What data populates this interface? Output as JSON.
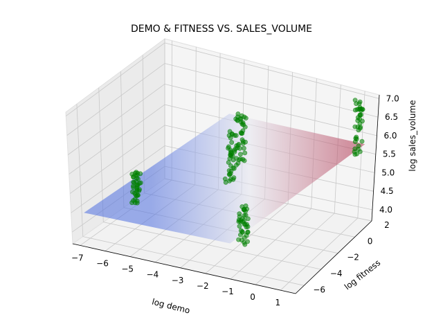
{
  "chart_data": {
    "type": "scatter3d",
    "title": "DEMO & FITNESS VS. SALES_VOLUME",
    "xlabel": "log demo",
    "ylabel": "log fitness",
    "zlabel": "log sales_volume",
    "xlim": [
      -7.3,
      1.6
    ],
    "ylim": [
      -7.0,
      2.0
    ],
    "zlim": [
      3.7,
      7.1
    ],
    "x_ticks": [
      "−7",
      "−6",
      "−5",
      "−4",
      "−3",
      "−2",
      "−1",
      "0",
      "1"
    ],
    "y_ticks": [
      "−6",
      "−4",
      "−2",
      "0",
      "2"
    ],
    "z_ticks": [
      "4.0",
      "4.5",
      "5.0",
      "5.5",
      "6.0",
      "6.5",
      "7.0"
    ],
    "grid": true,
    "point_color": "#008000",
    "plane_color_low": "#4f6fe0",
    "plane_color_high": "#b4405a",
    "regression_plane": {
      "z_corners": [
        4.45,
        4.5,
        5.7,
        5.75
      ]
    },
    "clusters": [
      {
        "x": -7.0,
        "y": -1.5,
        "z_min": 3.8,
        "z_max": 4.55
      },
      {
        "x": -4.2,
        "y": 1.3,
        "z_min": 4.1,
        "z_max": 5.4
      },
      {
        "x": -3.8,
        "y": 1.3,
        "z_min": 4.55,
        "z_max": 5.9
      },
      {
        "x": -1.5,
        "y": -4.2,
        "z_min": 4.0,
        "z_max": 5.0
      },
      {
        "x": 1.0,
        "y": 1.5,
        "z_min": 5.3,
        "z_max": 7.0
      }
    ]
  }
}
